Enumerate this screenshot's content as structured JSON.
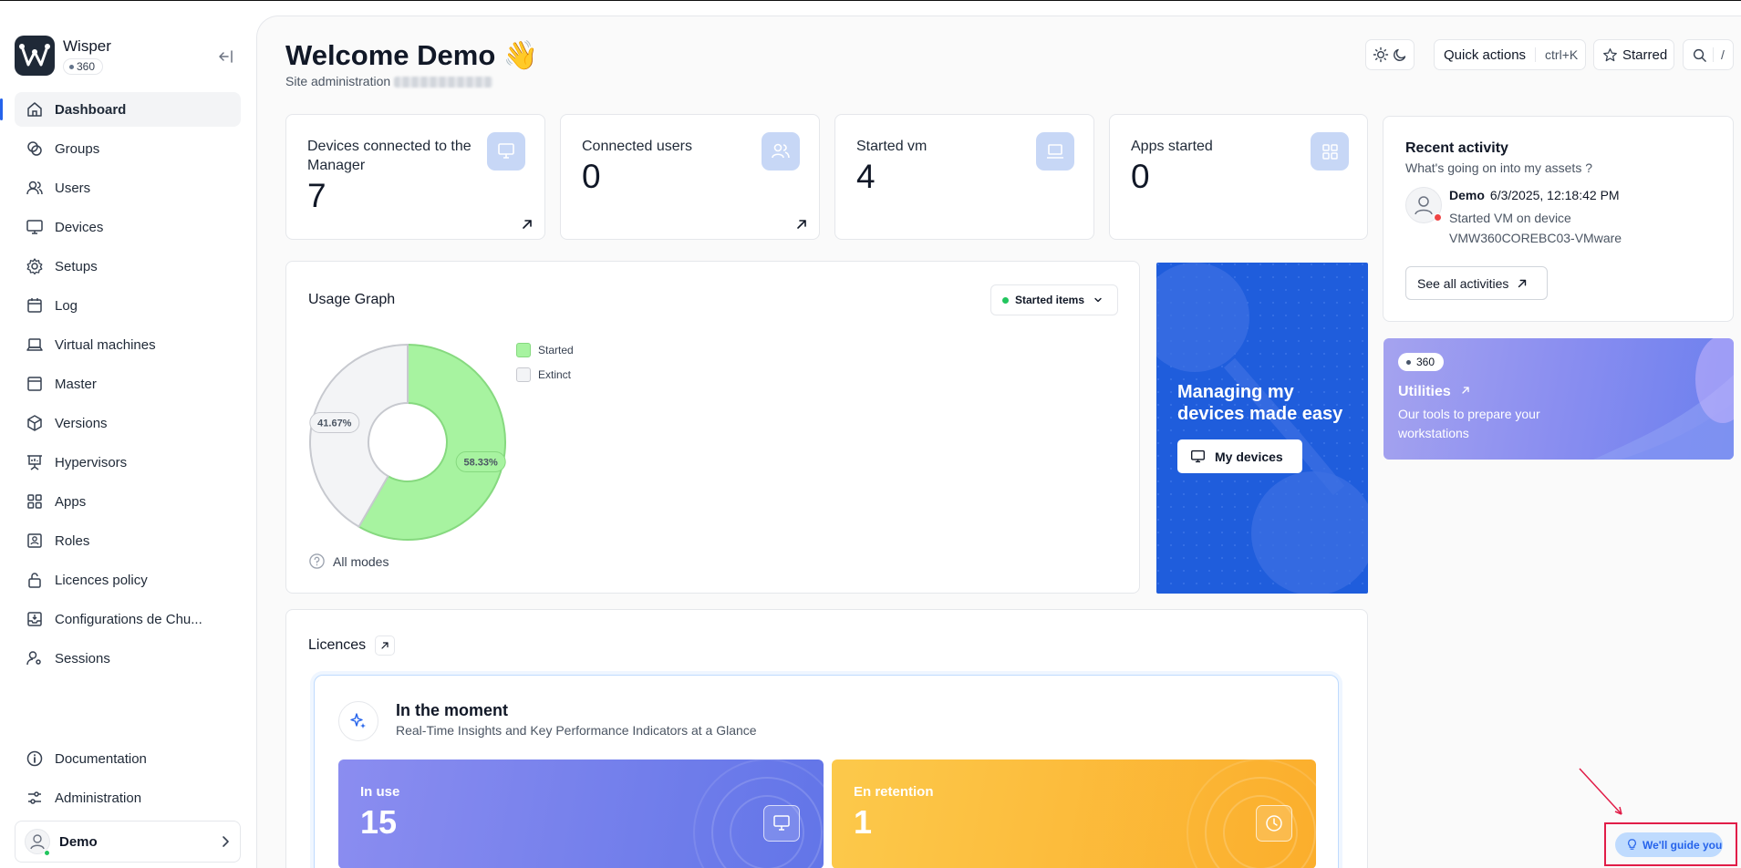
{
  "brand": {
    "name": "Wisper",
    "badge": "360"
  },
  "sidebar": {
    "items": [
      {
        "label": "Dashboard",
        "icon": "home-icon",
        "active": true
      },
      {
        "label": "Groups",
        "icon": "groups-icon"
      },
      {
        "label": "Users",
        "icon": "users-icon"
      },
      {
        "label": "Devices",
        "icon": "monitor-icon"
      },
      {
        "label": "Setups",
        "icon": "gear-icon"
      },
      {
        "label": "Log",
        "icon": "calendar-icon"
      },
      {
        "label": "Virtual machines",
        "icon": "laptop-icon"
      },
      {
        "label": "Master",
        "icon": "window-icon"
      },
      {
        "label": "Versions",
        "icon": "package-icon"
      },
      {
        "label": "Hypervisors",
        "icon": "presentation-icon"
      },
      {
        "label": "Apps",
        "icon": "grid-icon"
      },
      {
        "label": "Roles",
        "icon": "id-card-icon"
      },
      {
        "label": "Licences policy",
        "icon": "lock-icon"
      },
      {
        "label": "Configurations de Chu...",
        "icon": "download-box-icon"
      },
      {
        "label": "Sessions",
        "icon": "user-key-icon"
      }
    ],
    "bottom": [
      {
        "label": "Documentation",
        "icon": "info-icon"
      },
      {
        "label": "Administration",
        "icon": "sliders-icon"
      }
    ],
    "user": {
      "name": "Demo"
    }
  },
  "header": {
    "title": "Welcome Demo",
    "emoji": "👋",
    "subtitle": "Site administration",
    "quick_actions": "Quick actions",
    "quick_actions_kbd": "ctrl+K",
    "starred": "Starred",
    "search_kbd": "/"
  },
  "stats": [
    {
      "label": "Devices connected to the Manager",
      "value": "7",
      "icon": "monitor-icon",
      "has_link": true
    },
    {
      "label": "Connected users",
      "value": "0",
      "icon": "users-icon",
      "has_link": true
    },
    {
      "label": "Started vm",
      "value": "4",
      "icon": "laptop-icon",
      "has_link": false
    },
    {
      "label": "Apps started",
      "value": "0",
      "icon": "grid-icon",
      "has_link": false
    }
  ],
  "usage": {
    "title": "Usage Graph",
    "filter": "Started items",
    "footer": "All modes"
  },
  "chart_data": {
    "type": "pie",
    "categories": [
      "Started",
      "Extinct"
    ],
    "values": [
      58.33,
      41.67
    ],
    "labels": [
      "58.33%",
      "41.67%"
    ],
    "colors": [
      "#a7f3a0",
      "#f3f4f6"
    ],
    "stroke_colors": [
      "#86d97f",
      "#c7c9cf"
    ],
    "legend_position": "right"
  },
  "promo": {
    "title": "Managing my devices made easy",
    "button": "My devices"
  },
  "activity": {
    "title": "Recent activity",
    "subtitle": "What's going on into my assets ?",
    "user": "Demo",
    "time": "6/3/2025, 12:18:42 PM",
    "text1": "Started VM on device",
    "text2": "VMW360COREBC03-VMware",
    "button": "See all activities"
  },
  "utilities": {
    "badge": "360",
    "title": "Utilities",
    "desc": "Our tools to prepare your workstations"
  },
  "licences": {
    "title": "Licences",
    "moment_title": "In the moment",
    "moment_sub": "Real-Time Insights and Key Performance Indicators at a Glance",
    "kpis": [
      {
        "label": "In use",
        "value": "15",
        "icon": "monitor-icon"
      },
      {
        "label": "En retention",
        "value": "1",
        "icon": "clock-icon"
      }
    ]
  },
  "guide": {
    "label": "We'll guide you"
  }
}
